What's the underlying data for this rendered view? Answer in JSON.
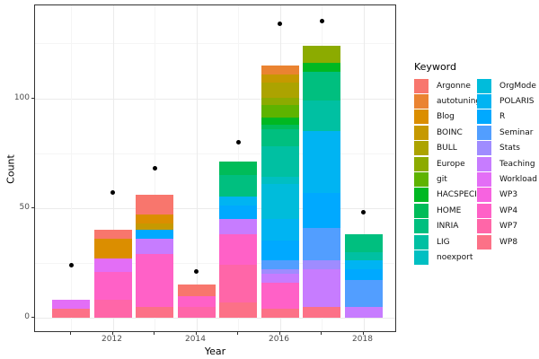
{
  "axes": {
    "x": {
      "title": "Year",
      "tick_years": [
        2011,
        2012,
        2013,
        2014,
        2015,
        2016,
        2017,
        2018
      ],
      "labeled_years": [
        2012,
        2014,
        2016,
        2018
      ],
      "tick_labels": [
        "2012",
        "2014",
        "2016",
        "2018"
      ]
    },
    "y": {
      "title": "Count",
      "tick_values": [
        0,
        50,
        100
      ],
      "tick_labels": [
        "0",
        "50",
        "100"
      ],
      "minor_values": [
        25,
        75,
        125
      ]
    }
  },
  "legend": {
    "title": "Keyword",
    "columns": [
      [
        "Argonne",
        "autotuning",
        "Blog",
        "BOINC",
        "BULL",
        "Europe",
        "git",
        "HACSPECIS",
        "HOME",
        "INRIA",
        "LIG",
        "noexport"
      ],
      [
        "OrgMode",
        "POLARIS",
        "R",
        "Seminar",
        "Stats",
        "Teaching",
        "Workload",
        "WP3",
        "WP4",
        "WP7",
        "WP8"
      ]
    ]
  },
  "chart_data": {
    "type": "bar",
    "stacked": true,
    "title": "",
    "xlabel": "Year",
    "ylabel": "Count",
    "ylim": [
      0,
      142
    ],
    "x_years": [
      2011,
      2012,
      2013,
      2014,
      2015,
      2016,
      2017,
      2018
    ],
    "bar_totals": [
      8,
      40,
      56,
      15,
      71,
      115,
      124,
      38
    ],
    "bars": [
      {
        "year": 2011,
        "total": 8,
        "segments_top_to_bottom": [
          {
            "keyword": "Workload",
            "value": 4
          },
          {
            "keyword": "WP8",
            "value": 4
          }
        ]
      },
      {
        "year": 2012,
        "total": 40,
        "segments_top_to_bottom": [
          {
            "keyword": "Argonne",
            "value": 4
          },
          {
            "keyword": "Blog",
            "value": 9
          },
          {
            "keyword": "Workload",
            "value": 6
          },
          {
            "keyword": "WP4",
            "value": 13
          },
          {
            "keyword": "WP7",
            "value": 8
          }
        ]
      },
      {
        "year": 2013,
        "total": 56,
        "segments_top_to_bottom": [
          {
            "keyword": "Argonne",
            "value": 9
          },
          {
            "keyword": "Blog",
            "value": 4
          },
          {
            "keyword": "BOINC",
            "value": 3
          },
          {
            "keyword": "R",
            "value": 4
          },
          {
            "keyword": "Teaching",
            "value": 7
          },
          {
            "keyword": "WP4",
            "value": 24
          },
          {
            "keyword": "WP8",
            "value": 5
          }
        ]
      },
      {
        "year": 2014,
        "total": 15,
        "segments_top_to_bottom": [
          {
            "keyword": "Argonne",
            "value": 5
          },
          {
            "keyword": "WP4",
            "value": 5
          },
          {
            "keyword": "WP7",
            "value": 5
          }
        ]
      },
      {
        "year": 2015,
        "total": 71,
        "segments_top_to_bottom": [
          {
            "keyword": "HOME",
            "value": 6
          },
          {
            "keyword": "INRIA",
            "value": 10
          },
          {
            "keyword": "POLARIS",
            "value": 4
          },
          {
            "keyword": "R",
            "value": 6
          },
          {
            "keyword": "Teaching",
            "value": 7
          },
          {
            "keyword": "WP4",
            "value": 14
          },
          {
            "keyword": "WP7",
            "value": 17
          },
          {
            "keyword": "WP8",
            "value": 7
          }
        ]
      },
      {
        "year": 2016,
        "total": 115,
        "segments_top_to_bottom": [
          {
            "keyword": "autotuning",
            "value": 4
          },
          {
            "keyword": "BOINC",
            "value": 4
          },
          {
            "keyword": "BULL",
            "value": 7
          },
          {
            "keyword": "Europe",
            "value": 3
          },
          {
            "keyword": "git",
            "value": 6
          },
          {
            "keyword": "HACSPECIS",
            "value": 3
          },
          {
            "keyword": "HOME",
            "value": 2
          },
          {
            "keyword": "INRIA",
            "value": 8
          },
          {
            "keyword": "LIG",
            "value": 14
          },
          {
            "keyword": "noexport",
            "value": 3
          },
          {
            "keyword": "OrgMode",
            "value": 16
          },
          {
            "keyword": "POLARIS",
            "value": 10
          },
          {
            "keyword": "R",
            "value": 9
          },
          {
            "keyword": "Seminar",
            "value": 4
          },
          {
            "keyword": "Stats",
            "value": 2
          },
          {
            "keyword": "Teaching",
            "value": 4
          },
          {
            "keyword": "WP4",
            "value": 12
          },
          {
            "keyword": "WP8",
            "value": 4
          }
        ]
      },
      {
        "year": 2017,
        "total": 124,
        "segments_top_to_bottom": [
          {
            "keyword": "Europe",
            "value": 8
          },
          {
            "keyword": "HACSPECIS",
            "value": 4
          },
          {
            "keyword": "INRIA",
            "value": 13
          },
          {
            "keyword": "LIG",
            "value": 14
          },
          {
            "keyword": "POLARIS",
            "value": 28
          },
          {
            "keyword": "R",
            "value": 16
          },
          {
            "keyword": "Seminar",
            "value": 15
          },
          {
            "keyword": "Stats",
            "value": 4
          },
          {
            "keyword": "Teaching",
            "value": 17
          },
          {
            "keyword": "WP8",
            "value": 5
          }
        ]
      },
      {
        "year": 2018,
        "total": 38,
        "segments_top_to_bottom": [
          {
            "keyword": "INRIA",
            "value": 8
          },
          {
            "keyword": "LIG",
            "value": 4
          },
          {
            "keyword": "POLARIS",
            "value": 4
          },
          {
            "keyword": "R",
            "value": 5
          },
          {
            "keyword": "Seminar",
            "value": 12
          },
          {
            "keyword": "Teaching",
            "value": 5
          }
        ]
      }
    ],
    "points": [
      {
        "year": 2011,
        "value": 24
      },
      {
        "year": 2012,
        "value": 57
      },
      {
        "year": 2013,
        "value": 68
      },
      {
        "year": 2014,
        "value": 21
      },
      {
        "year": 2015,
        "value": 80
      },
      {
        "year": 2016,
        "value": 134
      },
      {
        "year": 2017,
        "value": 135
      },
      {
        "year": 2018,
        "value": 48
      }
    ],
    "palette": {
      "Argonne": "#F8766D",
      "autotuning": "#EA8331",
      "Blog": "#DB8E00",
      "BOINC": "#C69900",
      "BULL": "#ACA300",
      "Europe": "#8CAB00",
      "git": "#5EB300",
      "HACSPECIS": "#00B822",
      "HOME": "#00BC59",
      "INRIA": "#00BF7F",
      "LIG": "#00C0A2",
      "noexport": "#00BFC2",
      "OrgMode": "#00BCDB",
      "POLARIS": "#00B4F2",
      "R": "#00A9FF",
      "Seminar": "#529EFF",
      "Stats": "#9F8CFF",
      "Teaching": "#C77CFF",
      "Workload": "#E36EF6",
      "WP3": "#F763E0",
      "WP4": "#FF61C7",
      "WP7": "#FF66A8",
      "WP8": "#FC7187"
    },
    "point_color": "#000000",
    "legend_position": "right",
    "grid": true
  }
}
